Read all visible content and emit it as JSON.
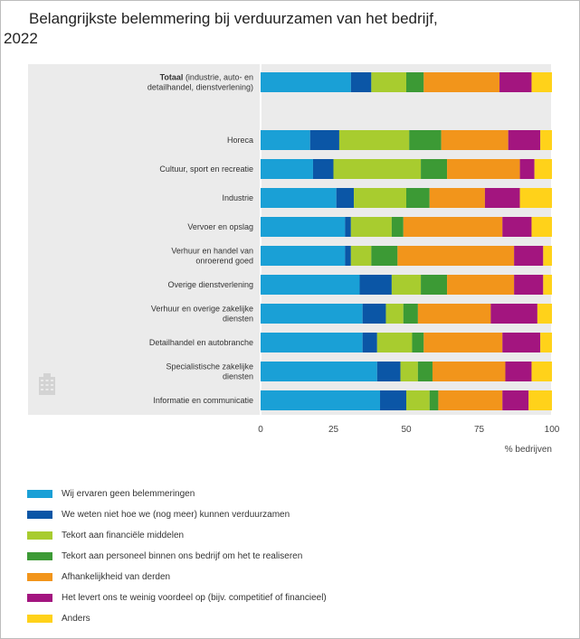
{
  "title": "Belangrijkste belemmering bij verduurzamen van het bedrijf, 2022",
  "colors": {
    "panel_bg": "#ebebeb",
    "series": [
      "#1aa0d6",
      "#0b56a6",
      "#a8cc2f",
      "#3c9a35",
      "#f2951b",
      "#a3157f",
      "#ffd21a"
    ]
  },
  "icon": "building-icon",
  "chart_data": {
    "type": "bar",
    "orientation": "horizontal",
    "stacked": true,
    "xlabel": "% bedrijven",
    "xlim": [
      0,
      100
    ],
    "xticks": [
      "0",
      "25",
      "50",
      "75",
      "100"
    ],
    "legend_position": "bottom",
    "categories": [
      {
        "bold": "Totaal",
        "rest": "(industrie, auto- en detailhandel, dienstverlening)"
      },
      {
        "bold": "",
        "rest": "Horeca"
      },
      {
        "bold": "",
        "rest": "Cultuur, sport en recreatie"
      },
      {
        "bold": "",
        "rest": "Industrie"
      },
      {
        "bold": "",
        "rest": "Vervoer en opslag"
      },
      {
        "bold": "",
        "rest": "Verhuur en handel van onroerend goed"
      },
      {
        "bold": "",
        "rest": "Overige dienstverlening"
      },
      {
        "bold": "",
        "rest": "Verhuur en overige zakelijke diensten"
      },
      {
        "bold": "",
        "rest": "Detailhandel en autobranche"
      },
      {
        "bold": "",
        "rest": "Specialistische zakelijke diensten"
      },
      {
        "bold": "",
        "rest": "Informatie en communicatie"
      }
    ],
    "series": [
      {
        "name": "Wij ervaren geen belemmeringen",
        "values": [
          31,
          17,
          18,
          26,
          29,
          29,
          34,
          35,
          35,
          40,
          41
        ]
      },
      {
        "name": "We weten niet hoe we (nog meer) kunnen verduurzamen",
        "values": [
          7,
          10,
          7,
          6,
          2,
          2,
          11,
          8,
          5,
          8,
          9
        ]
      },
      {
        "name": "Tekort aan financiële middelen",
        "values": [
          12,
          24,
          30,
          18,
          14,
          7,
          10,
          6,
          12,
          6,
          8
        ]
      },
      {
        "name": "Tekort aan personeel binnen ons bedrijf om het te realiseren",
        "values": [
          6,
          11,
          9,
          8,
          4,
          9,
          9,
          5,
          4,
          5,
          3
        ]
      },
      {
        "name": "Afhankelijkheid van derden",
        "values": [
          26,
          23,
          25,
          19,
          34,
          40,
          23,
          25,
          27,
          25,
          22
        ]
      },
      {
        "name": "Het levert ons te weinig voordeel op (bijv. competitief of financieel)",
        "values": [
          11,
          11,
          5,
          12,
          10,
          10,
          10,
          16,
          13,
          9,
          9
        ]
      },
      {
        "name": "Anders",
        "values": [
          7,
          4,
          6,
          11,
          7,
          3,
          3,
          5,
          4,
          7,
          8
        ]
      }
    ]
  }
}
